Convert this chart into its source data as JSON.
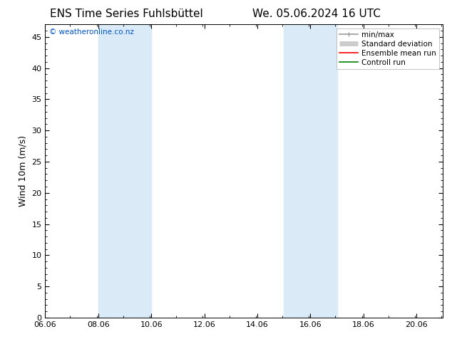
{
  "title_left": "ENS Time Series Fuhlsbüttel",
  "title_right": "We. 05.06.2024 16 UTC",
  "ylabel": "Wind 10m (m/s)",
  "watermark": "© weatheronline.co.nz",
  "watermark_color": "#0055cc",
  "xlim_start": 6.06,
  "xlim_end": 21.06,
  "ylim_min": 0,
  "ylim_max": 47,
  "yticks": [
    0,
    5,
    10,
    15,
    20,
    25,
    30,
    35,
    40,
    45
  ],
  "xtick_labels": [
    "06.06",
    "08.06",
    "10.06",
    "12.06",
    "14.06",
    "16.06",
    "18.06",
    "20.06"
  ],
  "xtick_positions": [
    6.06,
    8.06,
    10.06,
    12.06,
    14.06,
    16.06,
    18.06,
    20.06
  ],
  "shaded_bands": [
    {
      "x_start": 8.06,
      "x_end": 10.06,
      "color": "#daeaf7"
    },
    {
      "x_start": 15.06,
      "x_end": 17.06,
      "color": "#daeaf7"
    }
  ],
  "legend_entries": [
    {
      "label": "min/max",
      "color": "#999999",
      "linewidth": 1.2
    },
    {
      "label": "Standard deviation",
      "color": "#cccccc",
      "linewidth": 5
    },
    {
      "label": "Ensemble mean run",
      "color": "#ff0000",
      "linewidth": 1.2
    },
    {
      "label": "Controll run",
      "color": "#008000",
      "linewidth": 1.2
    }
  ],
  "bg_color": "#ffffff",
  "plot_bg_color": "#ffffff",
  "title_fontsize": 11,
  "axis_label_fontsize": 9,
  "tick_fontsize": 8,
  "legend_fontsize": 7.5,
  "watermark_fontsize": 7.5
}
